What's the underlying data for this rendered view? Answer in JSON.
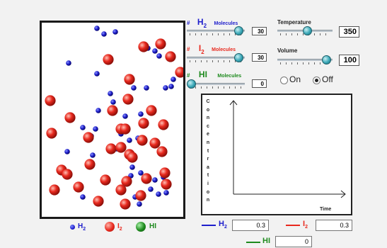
{
  "colors": {
    "h2": "#1e1ecc",
    "i2": "#e8291e",
    "hi": "#1e8a1e"
  },
  "sliders": {
    "h2": {
      "hash": "#",
      "formula": "H",
      "sub": "2",
      "label": "Molecules",
      "value": "30",
      "level": 0.95
    },
    "i2": {
      "hash": "#",
      "formula": "I",
      "sub": "2",
      "label": "Molecules",
      "value": "30",
      "level": 0.95
    },
    "hi": {
      "hash": "#",
      "formula": "HI",
      "label": "Molecules",
      "value": "0",
      "level": 0.0
    },
    "temperature": {
      "label": "Temperature",
      "value": "350",
      "level": 0.55
    },
    "volume": {
      "label": "Volume",
      "value": "100",
      "level": 0.95
    }
  },
  "radios": {
    "on": "On",
    "off": "Off",
    "selected": "off"
  },
  "graph": {
    "ylabel": "Concentration",
    "xlabel": "Time"
  },
  "legend": {
    "h2": {
      "text": "H",
      "sub": "2"
    },
    "i2": {
      "text": "I",
      "sub": "2"
    },
    "hi": {
      "text": "HI"
    }
  },
  "outputs": {
    "h2": {
      "label": "H",
      "sub": "2",
      "value": "0.3"
    },
    "i2": {
      "label": "I",
      "sub": "2",
      "value": "0.3"
    },
    "hi": {
      "label": "HI",
      "value": "0"
    }
  }
}
